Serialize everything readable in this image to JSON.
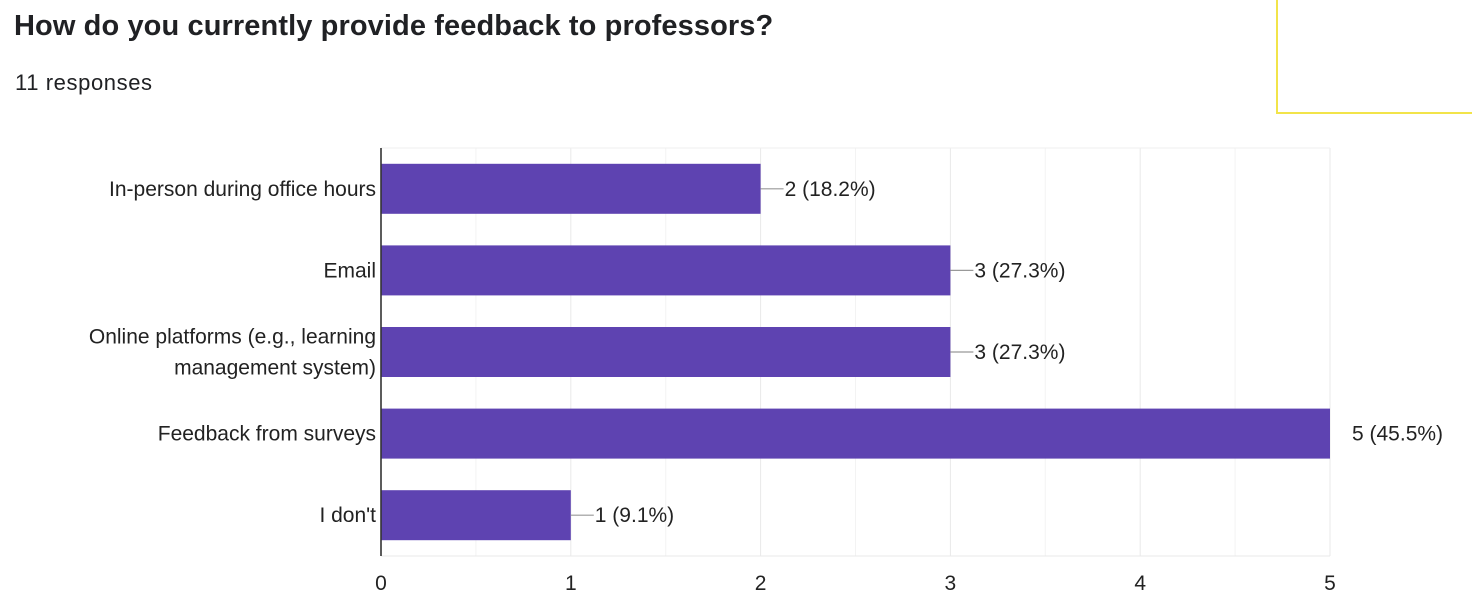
{
  "header": {
    "title": "How do you currently provide feedback to professors?",
    "response_count": "11 responses"
  },
  "colors": {
    "bar": "#5e43b1",
    "grid": "#e9e9e9",
    "axis": "#333333",
    "leader": "#999999",
    "corner_border": "#f2e44a"
  },
  "chart_data": {
    "type": "bar",
    "orientation": "horizontal",
    "categories": [
      [
        "In-person during office hours"
      ],
      [
        "Email"
      ],
      [
        "Online platforms (e.g., learning",
        "management system)"
      ],
      [
        "Feedback from surveys"
      ],
      [
        "I don't"
      ]
    ],
    "values": [
      2,
      3,
      3,
      5,
      1
    ],
    "data_labels": [
      "2 (18.2%)",
      "3 (27.3%)",
      "3 (27.3%)",
      "5 (45.5%)",
      "1 (9.1%)"
    ],
    "xlim": [
      0,
      5
    ],
    "x_ticks": [
      0,
      1,
      2,
      3,
      4,
      5
    ],
    "grid": true
  }
}
